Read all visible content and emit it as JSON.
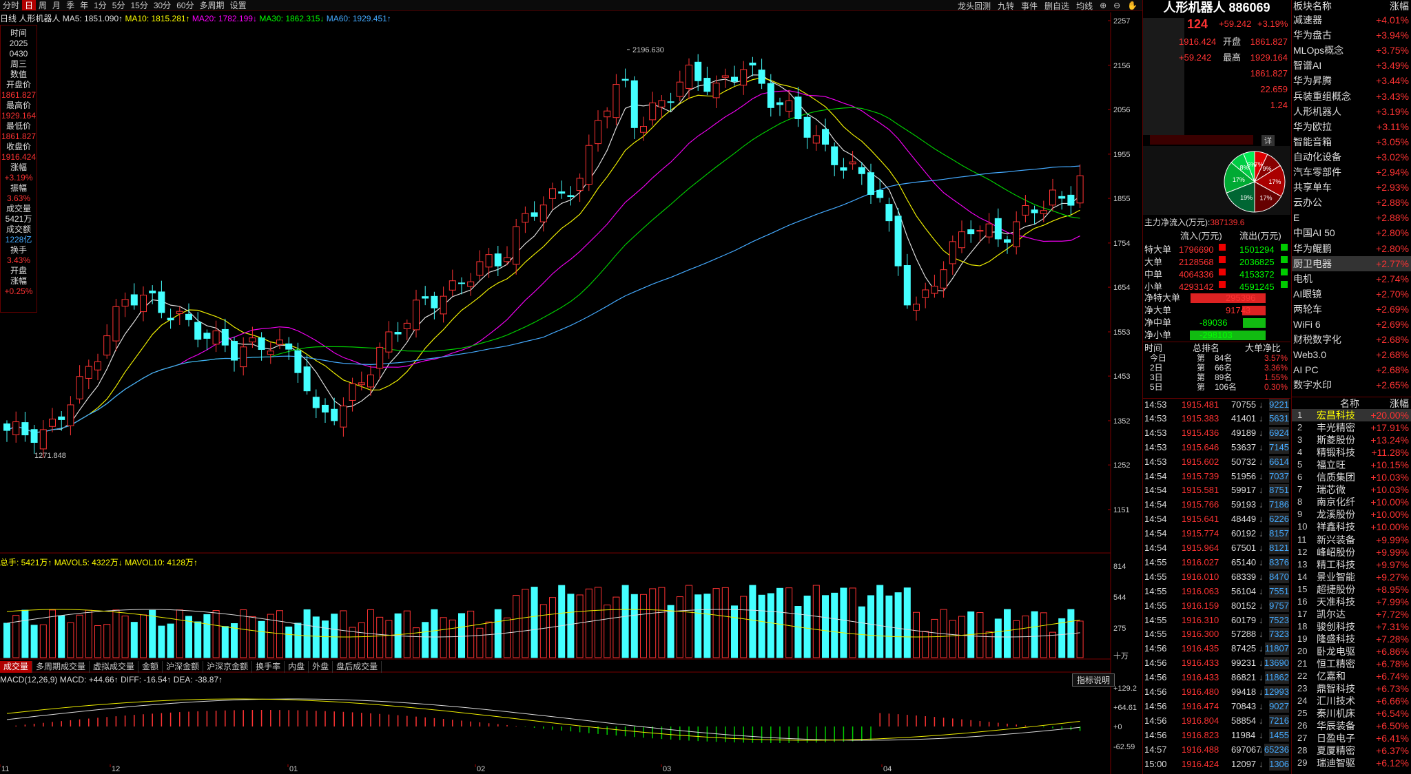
{
  "toolbar": {
    "items": [
      "分时",
      "日",
      "周",
      "月",
      "季",
      "年",
      "1分",
      "5分",
      "15分",
      "30分",
      "60分",
      "多周期",
      "设置"
    ],
    "active": "日",
    "right": [
      "龙头回测",
      "九转",
      "事件",
      "删自选",
      "均线"
    ]
  },
  "ma_legend": {
    "period": "日线",
    "name": "人形机器人",
    "ma5": "MA5: 1851.090↑",
    "ma10": "MA10: 1815.281↑",
    "ma20": "MA20: 1782.199↓",
    "ma30": "MA30: 1862.315↓",
    "ma60": "MA60: 1929.451↑"
  },
  "info_box": {
    "rows": [
      [
        "时间",
        "w"
      ],
      [
        "2025",
        "w"
      ],
      [
        "0430",
        "w"
      ],
      [
        "周三",
        "w"
      ],
      [
        "数值",
        "w"
      ],
      [
        "",
        ""
      ],
      [
        "开盘价",
        "w"
      ],
      [
        "1861.827",
        "c"
      ],
      [
        "最高价",
        "w"
      ],
      [
        "1929.164",
        "c"
      ],
      [
        "最低价",
        "w"
      ],
      [
        "1861.827",
        "c"
      ],
      [
        "收盘价",
        "w"
      ],
      [
        "1916.424",
        "c"
      ],
      [
        "涨幅",
        "w"
      ],
      [
        "+3.19%",
        "c"
      ],
      [
        "振幅",
        "w"
      ],
      [
        "3.63%",
        "c"
      ],
      [
        "成交量",
        "w"
      ],
      [
        "5421万",
        "w"
      ],
      [
        "成交额",
        "w"
      ],
      [
        "1228亿",
        "b"
      ],
      [
        "换手",
        "w"
      ],
      [
        "3.43%",
        "c"
      ],
      [
        "开盘",
        "w"
      ],
      [
        "涨幅",
        "w"
      ],
      [
        "+0.25%",
        "c"
      ]
    ]
  },
  "price_axis": [
    "2257",
    "2156",
    "2056",
    "1955",
    "1855",
    "1754",
    "1654",
    "1553",
    "1453",
    "1352",
    "1252",
    "1151"
  ],
  "price_annot": {
    "high": "2196.630",
    "low": "1271.848"
  },
  "volume": {
    "legend": "总手: 5421万↑  MAVOL5: 4322万↓  MAVOL10: 4128万↑",
    "axis": [
      "814",
      "544",
      "275",
      "十万"
    ]
  },
  "tabs": {
    "items": [
      "成交量",
      "多周期成交量",
      "虚拟成交量",
      "金额",
      "沪深金额",
      "沪深京金额",
      "换手率",
      "内盘",
      "外盘",
      "盘后成交量"
    ],
    "active": "成交量"
  },
  "macd": {
    "legend": "MACD(12,26,9)  MACD: +44.66↑  DIFF: -16.54↑  DEA: -38.87↑",
    "axis": [
      "+129.2",
      "+64.61",
      "+0",
      "-62.59"
    ],
    "help": "指标说明"
  },
  "x_axis": [
    "11",
    "12",
    "01",
    "02",
    "03",
    "04"
  ],
  "chart_data": {
    "type": "candlestick",
    "title": "人形机器人 886069",
    "period": "日线",
    "last": {
      "open": 1861.827,
      "high": 1929.164,
      "low": 1861.827,
      "close": 1916.424
    },
    "high_mark": 2196.63,
    "low_mark": 1271.848
  },
  "quote": {
    "title": "人形机器人 886069",
    "price": "124",
    "change": "+59.242",
    "pct": "+3.19%",
    "lines": [
      [
        "1916.424",
        "开盘",
        "1861.827"
      ],
      [
        "+59.242",
        "最高",
        "1929.164"
      ],
      [
        "",
        "",
        "1861.827"
      ],
      [
        "",
        "",
        "22.659"
      ],
      [
        "",
        "",
        "1.24"
      ]
    ],
    "btn": "详"
  },
  "pie": {
    "slices": [
      [
        "7%",
        "#d00"
      ],
      [
        "9%",
        "#800"
      ],
      [
        "17%",
        "#a00"
      ],
      [
        "17%",
        "#600"
      ],
      [
        "19%",
        "#063"
      ],
      [
        "17%",
        "#0a3"
      ],
      [
        "8%",
        "#0c4"
      ],
      [
        "6%",
        "#0e5"
      ]
    ]
  },
  "flow": {
    "title": "主力净流入(万元):",
    "title_val": "387139.6",
    "head": [
      "流入(万元)",
      "流出(万元)"
    ],
    "rows": [
      [
        "特大单",
        "1796690",
        "1501294"
      ],
      [
        "大单",
        "2128568",
        "2036825"
      ],
      [
        "中单",
        "4064336",
        "4153372"
      ],
      [
        "小单",
        "4293142",
        "4591245"
      ]
    ],
    "net": [
      [
        "净特大单",
        "295396",
        1
      ],
      [
        "净大单",
        "91743",
        1
      ],
      [
        "净中单",
        "-89036",
        0
      ],
      [
        "净小单",
        "-298103",
        0
      ]
    ]
  },
  "rank": {
    "head": [
      "时间",
      "总排名",
      "大单净比"
    ],
    "rows": [
      [
        "今日",
        "第",
        "84名",
        "3.57%"
      ],
      [
        "2日",
        "第",
        "66名",
        "3.36%"
      ],
      [
        "3日",
        "第",
        "89名",
        "1.55%"
      ],
      [
        "5日",
        "第",
        "106名",
        "0.30%"
      ]
    ]
  },
  "ticks": [
    [
      "14:53",
      "1915.481",
      "70755",
      "9221"
    ],
    [
      "14:53",
      "1915.383",
      "41401",
      "5631"
    ],
    [
      "14:53",
      "1915.436",
      "49189",
      "6924"
    ],
    [
      "14:53",
      "1915.646",
      "53637",
      "7145"
    ],
    [
      "14:53",
      "1915.602",
      "50732",
      "6614"
    ],
    [
      "14:54",
      "1915.739",
      "51956",
      "7037"
    ],
    [
      "14:54",
      "1915.581",
      "59917",
      "8751"
    ],
    [
      "14:54",
      "1915.766",
      "59193",
      "7186"
    ],
    [
      "14:54",
      "1915.641",
      "48449",
      "6226"
    ],
    [
      "14:54",
      "1915.774",
      "60192",
      "8157"
    ],
    [
      "14:54",
      "1915.964",
      "67501",
      "8121"
    ],
    [
      "14:55",
      "1916.027",
      "65140",
      "8376"
    ],
    [
      "14:55",
      "1916.010",
      "68339",
      "8470"
    ],
    [
      "14:55",
      "1916.063",
      "56104",
      "7551"
    ],
    [
      "14:55",
      "1916.159",
      "80152",
      "9757"
    ],
    [
      "14:55",
      "1916.310",
      "60179",
      "7523"
    ],
    [
      "14:55",
      "1916.300",
      "57288",
      "7323"
    ],
    [
      "14:56",
      "1916.435",
      "87425",
      "11807"
    ],
    [
      "14:56",
      "1916.433",
      "99231",
      "13690"
    ],
    [
      "14:56",
      "1916.433",
      "86821",
      "11862"
    ],
    [
      "14:56",
      "1916.480",
      "99418",
      "12993"
    ],
    [
      "14:56",
      "1916.474",
      "70843",
      "9027"
    ],
    [
      "14:56",
      "1916.804",
      "58854",
      "7216"
    ],
    [
      "14:56",
      "1916.823",
      "11984",
      "1455"
    ],
    [
      "14:57",
      "1916.488",
      "697067",
      "65236"
    ],
    [
      "15:00",
      "1916.424",
      "12097",
      "1306"
    ]
  ],
  "sectors": {
    "head": [
      "板块名称",
      "涨幅"
    ],
    "rows": [
      [
        "减速器",
        "+4.01%"
      ],
      [
        "华为盘古",
        "+3.94%"
      ],
      [
        "MLOps概念",
        "+3.75%"
      ],
      [
        "智谱AI",
        "+3.49%"
      ],
      [
        "华为昇腾",
        "+3.44%"
      ],
      [
        "兵装重组概念",
        "+3.43%"
      ],
      [
        "人形机器人",
        "+3.19%"
      ],
      [
        "华为欧拉",
        "+3.11%"
      ],
      [
        "智能音箱",
        "+3.05%"
      ],
      [
        "自动化设备",
        "+3.02%"
      ],
      [
        "汽车零部件",
        "+2.94%"
      ],
      [
        "共享单车",
        "+2.93%"
      ],
      [
        "云办公",
        "+2.88%"
      ],
      [
        "E",
        "+2.88%"
      ],
      [
        "中国AI 50",
        "+2.80%"
      ],
      [
        "华为鲲鹏",
        "+2.80%"
      ],
      [
        "厨卫电器",
        "+2.77%"
      ],
      [
        "电机",
        "+2.74%"
      ],
      [
        "AI眼镜",
        "+2.70%"
      ],
      [
        "两轮车",
        "+2.69%"
      ],
      [
        "WiFi 6",
        "+2.69%"
      ],
      [
        "财税数字化",
        "+2.68%"
      ],
      [
        "Web3.0",
        "+2.68%"
      ],
      [
        "AI PC",
        "+2.68%"
      ],
      [
        "数字水印",
        "+2.65%"
      ]
    ],
    "selected": 16
  },
  "stocks": {
    "head": [
      "名称",
      "涨幅"
    ],
    "rows": [
      [
        "宏昌科技",
        "+20.00%"
      ],
      [
        "丰光精密",
        "+17.91%"
      ],
      [
        "斯菱股份",
        "+13.24%"
      ],
      [
        "精锻科技",
        "+11.28%"
      ],
      [
        "福立旺",
        "+10.15%"
      ],
      [
        "信质集团",
        "+10.03%"
      ],
      [
        "瑞芯微",
        "+10.03%"
      ],
      [
        "南京化纤",
        "+10.00%"
      ],
      [
        "龙溪股份",
        "+10.00%"
      ],
      [
        "祥鑫科技",
        "+10.00%"
      ],
      [
        "新兴装备",
        "+9.99%"
      ],
      [
        "峰岹股份",
        "+9.99%"
      ],
      [
        "精工科技",
        "+9.97%"
      ],
      [
        "景业智能",
        "+9.27%"
      ],
      [
        "超捷股份",
        "+8.95%"
      ],
      [
        "天准科技",
        "+7.99%"
      ],
      [
        "凯尔达",
        "+7.72%"
      ],
      [
        "骏创科技",
        "+7.31%"
      ],
      [
        "隆盛科技",
        "+7.28%"
      ],
      [
        "卧龙电驱",
        "+6.86%"
      ],
      [
        "恒工精密",
        "+6.78%"
      ],
      [
        "亿嘉和",
        "+6.74%"
      ],
      [
        "鼎智科技",
        "+6.73%"
      ],
      [
        "汇川技术",
        "+6.66%"
      ],
      [
        "秦川机床",
        "+6.54%"
      ],
      [
        "华辰装备",
        "+6.50%"
      ],
      [
        "日盈电子",
        "+6.41%"
      ],
      [
        "夏厦精密",
        "+6.37%"
      ],
      [
        "瑞迪智驱",
        "+6.12%"
      ]
    ],
    "selected": 0
  }
}
